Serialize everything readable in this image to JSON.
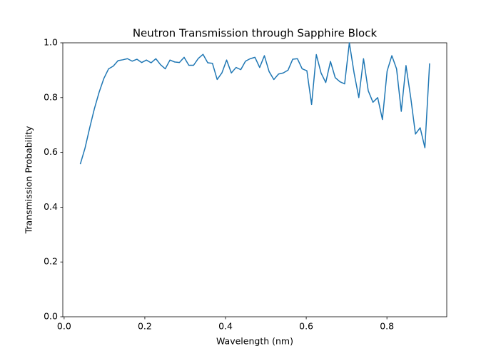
{
  "chart_data": {
    "type": "line",
    "title": "Neutron Transmission through Sapphire Block",
    "x_label": "Wavelength (nm)",
    "y_label": "Transmission Probability",
    "x": [
      0.04,
      0.0517,
      0.0634,
      0.0751,
      0.0868,
      0.0985,
      0.1102,
      0.1219,
      0.1336,
      0.1453,
      0.157,
      0.1687,
      0.1804,
      0.1921,
      0.2038,
      0.2155,
      0.2272,
      0.2389,
      0.2506,
      0.2623,
      0.274,
      0.2857,
      0.2974,
      0.3091,
      0.3208,
      0.3325,
      0.3442,
      0.3559,
      0.3676,
      0.3793,
      0.391,
      0.4027,
      0.4144,
      0.4261,
      0.4378,
      0.4495,
      0.4612,
      0.4729,
      0.4846,
      0.4963,
      0.508,
      0.5197,
      0.5314,
      0.5431,
      0.5548,
      0.5665,
      0.5782,
      0.5899,
      0.6016,
      0.6133,
      0.625,
      0.6367,
      0.6484,
      0.6601,
      0.6718,
      0.6835,
      0.6952,
      0.7069,
      0.7186,
      0.7303,
      0.742,
      0.7537,
      0.7654,
      0.7771,
      0.7888,
      0.8005,
      0.8122,
      0.8239,
      0.8356,
      0.8473,
      0.859,
      0.8707,
      0.8824,
      0.8941,
      0.9058
    ],
    "values": [
      0.557,
      0.615,
      0.69,
      0.76,
      0.82,
      0.87,
      0.905,
      0.915,
      0.935,
      0.938,
      0.942,
      0.933,
      0.94,
      0.928,
      0.937,
      0.927,
      0.942,
      0.92,
      0.905,
      0.937,
      0.93,
      0.928,
      0.947,
      0.918,
      0.918,
      0.943,
      0.958,
      0.927,
      0.925,
      0.866,
      0.89,
      0.937,
      0.89,
      0.91,
      0.902,
      0.933,
      0.942,
      0.947,
      0.91,
      0.953,
      0.895,
      0.866,
      0.886,
      0.89,
      0.9,
      0.94,
      0.942,
      0.905,
      0.898,
      0.775,
      0.957,
      0.89,
      0.855,
      0.932,
      0.873,
      0.858,
      0.85,
      1.0,
      0.89,
      0.8,
      0.942,
      0.825,
      0.783,
      0.8,
      0.72,
      0.897,
      0.953,
      0.905,
      0.75,
      0.917,
      0.8,
      0.667,
      0.69,
      0.617,
      0.925
    ],
    "color": "#1f77b4",
    "xlim": [
      -0.0033,
      0.9483
    ],
    "xticks": [
      {
        "value": 0.0,
        "label": "0.0"
      },
      0.2,
      0.4,
      0.6,
      0.8
    ],
    "ylim": [
      0.0,
      1.0
    ],
    "yticks": [
      {
        "value": 0.0,
        "label": "0.0"
      },
      0.2,
      0.4,
      0.6,
      0.8,
      {
        "value": 1.0,
        "label": "1.0"
      }
    ],
    "grid": false
  }
}
